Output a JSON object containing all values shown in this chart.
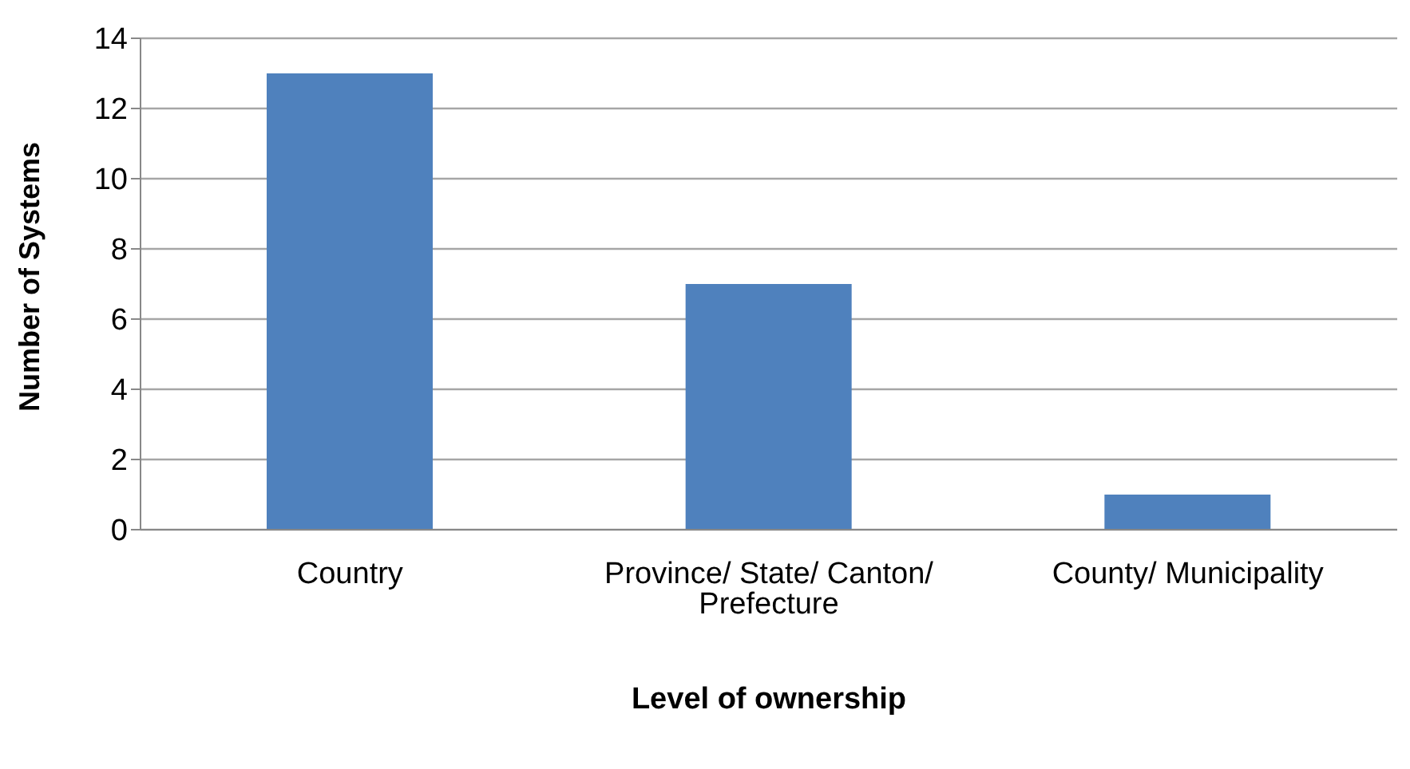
{
  "chart_data": {
    "type": "bar",
    "xlabel": "Level of ownership",
    "ylabel": "Number of Systems",
    "categories": [
      "Country",
      "Province/ State/ Canton/ Prefecture",
      "County/ Municipality"
    ],
    "values": [
      13,
      7,
      1
    ],
    "color": "#4f81bd",
    "ylim": [
      0,
      14
    ],
    "yticks": [
      0,
      2,
      4,
      6,
      8,
      10,
      12,
      14
    ],
    "grid": "y",
    "legend": false
  }
}
